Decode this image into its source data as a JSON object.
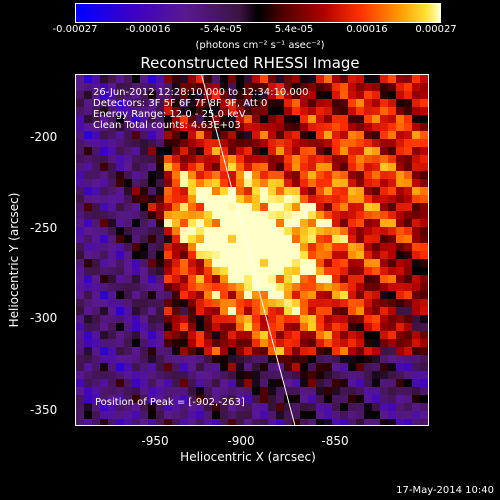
{
  "chart_data": {
    "type": "heatmap",
    "title": "Reconstructed RHESSI Image",
    "xlabel": "Heliocentric X (arcsec)",
    "ylabel": "Heliocentric Y (arcsec)",
    "xlim": [
      -995,
      -810
    ],
    "ylim": [
      -360,
      -175
    ],
    "x_ticks": [
      "-950",
      "-900",
      "-850"
    ],
    "y_ticks": [
      "-200",
      "-250",
      "-300",
      "-350"
    ],
    "colorbar": {
      "ticks": [
        "-0.00027",
        "-0.00016",
        "-5.4e-05",
        "5.4e-05",
        "0.00016",
        "0.00027"
      ],
      "unit": "(photons cm⁻² s⁻¹ asec⁻²)",
      "range": [
        -0.00027,
        0.00027
      ]
    },
    "info_lines": [
      "26-Jun-2012 12:28:10.000 to 12:34:10.000",
      "Detectors: 3F 5F 6F 7F 8F 9F, Att 0",
      "Energy Range: 12.0 - 25.0 keV",
      "Clean     Total counts: 4.63E+03"
    ],
    "peak_label": "Position of Peak = [-902,-263]",
    "peak": {
      "x": -902,
      "y": -263
    },
    "limb_curve": {
      "x": [
        -929,
        -880
      ],
      "y": [
        -175,
        -360
      ]
    }
  },
  "footer": {
    "timestamp": "17-May-2014 10:40"
  }
}
